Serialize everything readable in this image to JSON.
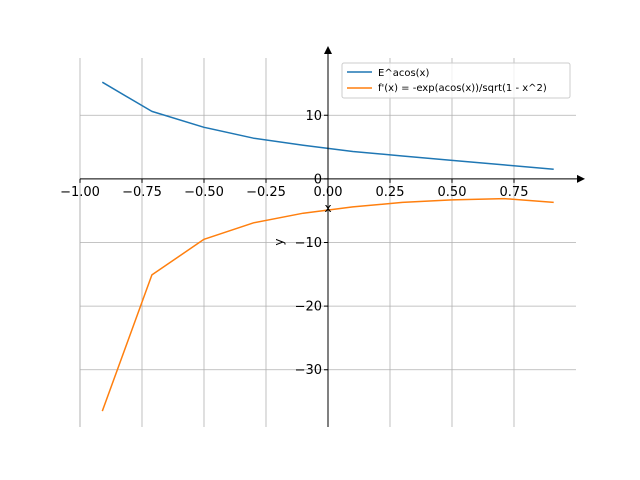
{
  "chart_data": {
    "type": "line",
    "xlabel": "x",
    "ylabel": "y",
    "xlim": [
      -1.0,
      1.0
    ],
    "ylim": [
      -39,
      19
    ],
    "grid": true,
    "legend_position": "top-right",
    "x_ticks": [
      -1.0,
      -0.75,
      -0.5,
      -0.25,
      0.0,
      0.25,
      0.5,
      0.75
    ],
    "x_tick_labels": [
      "−1.00",
      "−0.75",
      "−0.50",
      "−0.25",
      "0.00",
      "0.25",
      "0.50",
      "0.75"
    ],
    "y_ticks": [
      -30,
      -20,
      -10,
      0,
      10
    ],
    "y_tick_labels": [
      "−30",
      "−20",
      "−10",
      "0",
      "10"
    ],
    "series": [
      {
        "name": "E^acos(x)",
        "color": "#1f77b4",
        "x": [
          -0.91,
          -0.71,
          -0.5,
          -0.3,
          -0.1,
          0.1,
          0.3,
          0.5,
          0.71,
          0.91
        ],
        "y": [
          15.2,
          10.6,
          8.1,
          6.4,
          5.3,
          4.3,
          3.6,
          2.9,
          2.2,
          1.5
        ]
      },
      {
        "name": "f'(x) = -exp(acos(x))/sqrt(1 - x^2)",
        "color": "#ff7f0e",
        "x": [
          -0.91,
          -0.71,
          -0.5,
          -0.3,
          -0.1,
          0.1,
          0.3,
          0.5,
          0.71,
          0.91
        ],
        "y": [
          -36.5,
          -15.1,
          -9.5,
          -6.9,
          -5.4,
          -4.4,
          -3.7,
          -3.3,
          -3.1,
          -3.7
        ]
      }
    ]
  }
}
